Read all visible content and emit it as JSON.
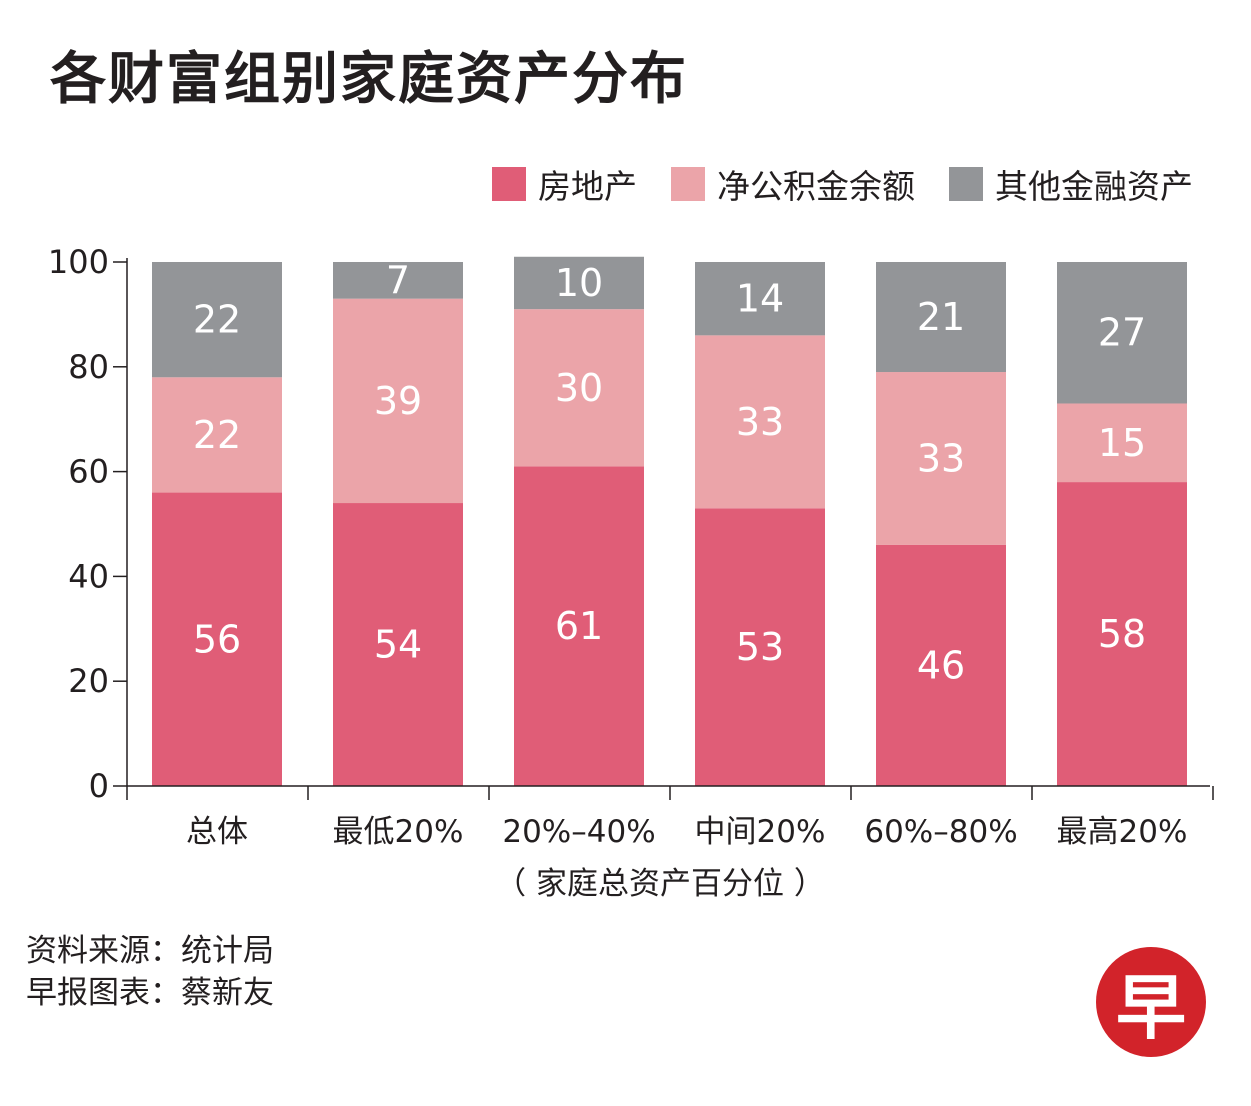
{
  "title": "各财富组别家庭资产分布",
  "legend": [
    {
      "label": "房地产",
      "color": "#e05d77"
    },
    {
      "label": "净公积金余额",
      "color": "#eba4a9"
    },
    {
      "label": "其他金融资产",
      "color": "#939598"
    }
  ],
  "sources": {
    "line1": "资料来源：统计局",
    "line2": "早报图表：蔡新友"
  },
  "logo": {
    "char": "早"
  },
  "chart_data": {
    "type": "bar",
    "stacked": true,
    "title": "各财富组别家庭资产分布",
    "xlabel": "（ 家庭总资产百分位 ）",
    "ylabel": "",
    "ylim": [
      0,
      100
    ],
    "yticks": [
      0,
      20,
      40,
      60,
      80,
      100
    ],
    "categories": [
      "总体",
      "最低20%",
      "20%–40%",
      "中间20%",
      "60%–80%",
      "最高20%"
    ],
    "series": [
      {
        "name": "房地产",
        "color": "#e05d77",
        "values": [
          56,
          54,
          61,
          53,
          46,
          58
        ]
      },
      {
        "name": "净公积金余额",
        "color": "#eba4a9",
        "values": [
          22,
          39,
          30,
          33,
          33,
          15
        ]
      },
      {
        "name": "其他金融资产",
        "color": "#939598",
        "values": [
          22,
          7,
          10,
          14,
          21,
          27
        ]
      }
    ]
  }
}
